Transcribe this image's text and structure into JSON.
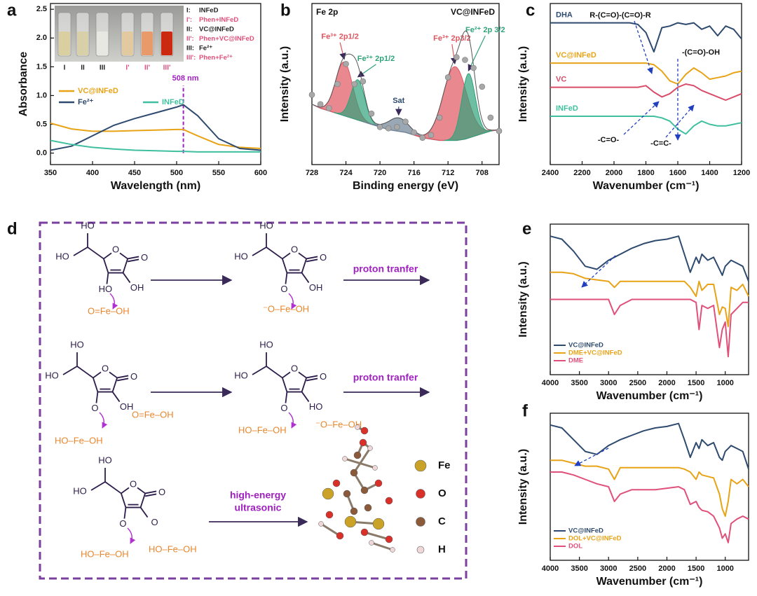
{
  "chart_data": [
    {
      "type": "line",
      "panel": "a",
      "xlabel": "Wavelength (nm)",
      "ylabel": "Absorbance",
      "x": [
        350,
        375,
        400,
        425,
        450,
        475,
        500,
        508,
        525,
        550,
        575,
        600
      ],
      "xlim": [
        350,
        600
      ],
      "xticks": [
        350,
        400,
        450,
        500,
        550,
        600
      ],
      "ylim": [
        -0.2,
        2.6
      ],
      "yticks": [
        {
          "value": 0,
          "label": "0.0"
        },
        0.5,
        {
          "value": 1,
          "label": "1.0"
        },
        1.5,
        {
          "value": 2,
          "label": "2.0"
        },
        2.5
      ],
      "legend": "middle left",
      "series": [
        {
          "name": "VC@INFeD",
          "color": "#e8a317",
          "values": [
            0.52,
            0.42,
            0.38,
            0.38,
            0.39,
            0.4,
            0.41,
            0.41,
            0.3,
            0.15,
            0.1,
            0.08
          ]
        },
        {
          "name": "Fe²⁺",
          "color": "#2e4a6e",
          "values": [
            0.05,
            0.12,
            0.3,
            0.48,
            0.6,
            0.7,
            0.8,
            0.84,
            0.65,
            0.25,
            0.08,
            0.05
          ]
        },
        {
          "name": "INFeD",
          "color": "#3fbf9f",
          "values": [
            0.22,
            0.15,
            0.1,
            0.07,
            0.05,
            0.04,
            0.03,
            0.03,
            0.02,
            0.02,
            0.02,
            0.02
          ]
        }
      ],
      "marker_line": {
        "x": 508,
        "label": "508 nm",
        "color": "#a020c0"
      },
      "inset": {
        "vials": [
          "I",
          "II",
          "III",
          "I'",
          "II'",
          "III'"
        ],
        "key": [
          {
            "id": "I:",
            "name": "INFeD",
            "color": "#222222"
          },
          {
            "id": "I':",
            "name": "Phen+INFeD",
            "color": "#e0507a"
          },
          {
            "id": "II:",
            "name": "VC@INFeD",
            "color": "#222222"
          },
          {
            "id": "II':",
            "name": "Phen+VC@INFeD",
            "color": "#e0507a"
          },
          {
            "id": "III:",
            "name": "Fe²⁺",
            "color": "#222222"
          },
          {
            "id": "III':",
            "name": "Phen+Fe²⁺",
            "color": "#e0507a"
          }
        ]
      }
    },
    {
      "type": "xps",
      "panel": "b",
      "xlabel": "Binding energy (eV)",
      "ylabel": "Intensity (a.u.)",
      "title": "Fe 2p",
      "subtitle": "VC@INFeD",
      "x": [
        728,
        727,
        726,
        725,
        724,
        723,
        722,
        721,
        720,
        719,
        718,
        717,
        716,
        715,
        714,
        713,
        712,
        711,
        710,
        709,
        708,
        707,
        706
      ],
      "xlim": [
        728,
        706
      ],
      "xticks": [
        728,
        724,
        720,
        716,
        712,
        708
      ],
      "ylim": [
        10,
        130
      ],
      "values": [
        62,
        55,
        52,
        70,
        85,
        70,
        72,
        48,
        38,
        37,
        38,
        42,
        34,
        30,
        32,
        45,
        75,
        90,
        88,
        82,
        68,
        45,
        35
      ],
      "point_color": "#a8a8a8",
      "background": [
        55,
        52,
        50,
        48,
        46,
        44,
        42,
        40,
        38,
        36,
        35,
        34,
        32,
        30,
        29,
        28,
        28,
        28,
        29,
        31,
        33,
        35,
        36
      ],
      "background_color": "#8fa3b8",
      "peaks": [
        {
          "label": "Fe³⁺ 2p1/2",
          "center": 724.2,
          "height": 40,
          "width": 1.0,
          "color": "#e0555f"
        },
        {
          "label": "Fe²⁺ 2p1/2",
          "center": 722.6,
          "height": 30,
          "width": 0.8,
          "color": "#2fa37a"
        },
        {
          "label": "Sat",
          "center": 717.8,
          "height": 10,
          "width": 1.2,
          "color": "#6f8296"
        },
        {
          "label": "Fe³⁺ 2p3/2",
          "center": 711.2,
          "height": 55,
          "width": 1.4,
          "color": "#e0555f"
        },
        {
          "label": "Fe²⁺ 2p 3/2",
          "center": 709.6,
          "height": 48,
          "width": 0.8,
          "color": "#2fa37a"
        }
      ]
    },
    {
      "type": "line",
      "panel": "c",
      "xlabel": "Wavenumber (cm⁻¹)",
      "ylabel": "Intensity (a.u.)",
      "x": [
        2400,
        2350,
        2300,
        2250,
        2200,
        2150,
        2100,
        2050,
        2000,
        1950,
        1900,
        1850,
        1800,
        1750,
        1700,
        1650,
        1600,
        1550,
        1500,
        1450,
        1400,
        1350,
        1300,
        1250,
        1200
      ],
      "xlim": [
        2400,
        1200
      ],
      "xticks": [
        2400,
        2200,
        2000,
        1800,
        1600,
        1400,
        1200
      ],
      "ylim": [
        0,
        100
      ],
      "series_labels": true,
      "series": [
        {
          "name": "DHA",
          "color": "#2e4a6e",
          "values": [
            88,
            88,
            88,
            88,
            88,
            88,
            88,
            88,
            88,
            88,
            88,
            87,
            82,
            70,
            85,
            86,
            88,
            87,
            88,
            84,
            86,
            80,
            86,
            84,
            78
          ]
        },
        {
          "name": "VC@INFeD",
          "color": "#e8a317",
          "values": [
            63,
            63,
            63,
            63,
            63,
            63,
            63,
            63,
            63,
            63,
            63,
            63,
            63,
            62,
            58,
            52,
            50,
            56,
            60,
            57,
            53,
            54,
            55,
            57,
            58
          ]
        },
        {
          "name": "VC",
          "color": "#d94c6a",
          "values": [
            48,
            48,
            48,
            48,
            48,
            48,
            48,
            48,
            48,
            48,
            48,
            48,
            49,
            45,
            42,
            44,
            48,
            50,
            49,
            46,
            44,
            42,
            40,
            42,
            44
          ]
        },
        {
          "name": "INFeD",
          "color": "#3fbf9f",
          "values": [
            30,
            30,
            30,
            30,
            30,
            30,
            30,
            30,
            30,
            30,
            30,
            30,
            30,
            30,
            29,
            27,
            22,
            19,
            24,
            27,
            25,
            24,
            24,
            25,
            26
          ]
        }
      ],
      "annotations": [
        "R-(C=O)-(C=O)-R",
        "-(C=O)-OH",
        "-C=O-",
        "-C=C-"
      ]
    },
    {
      "type": "line",
      "panel": "e",
      "xlabel": "Wavenumber (cm⁻¹)",
      "ylabel": "Intensity (a.u.)",
      "x": [
        4000,
        3800,
        3600,
        3400,
        3200,
        3000,
        2900,
        2800,
        2600,
        2400,
        2200,
        2000,
        1800,
        1700,
        1600,
        1500,
        1450,
        1400,
        1300,
        1200,
        1100,
        1050,
        1000,
        950,
        900,
        800,
        700,
        600
      ],
      "xlim": [
        4000,
        600
      ],
      "xticks": [
        4000,
        3500,
        3000,
        2500,
        2000,
        1500,
        1000
      ],
      "ylim": [
        0,
        100
      ],
      "legend": "lower left",
      "series": [
        {
          "name": "VC@INFeD",
          "color": "#2e4a6e",
          "values": [
            92,
            90,
            82,
            72,
            70,
            76,
            78,
            80,
            84,
            87,
            89,
            90,
            92,
            80,
            68,
            78,
            74,
            80,
            76,
            78,
            70,
            66,
            72,
            74,
            76,
            74,
            72,
            62
          ]
        },
        {
          "name": "DME+VC@INFeD",
          "color": "#e8a317",
          "values": [
            68,
            68,
            67,
            64,
            63,
            62,
            58,
            62,
            62,
            62,
            62,
            62,
            62,
            62,
            58,
            52,
            62,
            56,
            60,
            60,
            40,
            45,
            44,
            32,
            58,
            56,
            60,
            52
          ]
        },
        {
          "name": "DME",
          "color": "#e0507a",
          "values": [
            50,
            50,
            50,
            50,
            50,
            50,
            40,
            46,
            50,
            50,
            50,
            50,
            50,
            50,
            50,
            48,
            30,
            46,
            44,
            46,
            18,
            30,
            35,
            12,
            40,
            44,
            48,
            48
          ]
        }
      ]
    },
    {
      "type": "line",
      "panel": "f",
      "xlabel": "Wavenumber (cm⁻¹)",
      "ylabel": "Intensity (a.u.)",
      "x": [
        4000,
        3800,
        3600,
        3400,
        3200,
        3000,
        2900,
        2800,
        2600,
        2400,
        2200,
        2000,
        1800,
        1700,
        1600,
        1500,
        1450,
        1400,
        1300,
        1200,
        1100,
        1050,
        1000,
        950,
        900,
        800,
        700,
        600
      ],
      "xlim": [
        4000,
        600
      ],
      "xticks": [
        4000,
        3500,
        3000,
        2500,
        2000,
        1500,
        1000
      ],
      "ylim": [
        0,
        100
      ],
      "legend": "lower left",
      "series": [
        {
          "name": "VC@INFeD",
          "color": "#2e4a6e",
          "values": [
            92,
            90,
            82,
            74,
            72,
            78,
            80,
            82,
            85,
            88,
            90,
            91,
            93,
            82,
            70,
            80,
            76,
            82,
            78,
            80,
            70,
            68,
            74,
            76,
            78,
            76,
            74,
            62
          ]
        },
        {
          "name": "DOL+VC@INFeD",
          "color": "#e8a317",
          "values": [
            68,
            68,
            66,
            64,
            64,
            62,
            55,
            63,
            63,
            63,
            63,
            63,
            63,
            62,
            60,
            55,
            60,
            58,
            57,
            56,
            45,
            35,
            30,
            40,
            55,
            52,
            55,
            50
          ]
        },
        {
          "name": "DOL",
          "color": "#e0507a",
          "values": [
            60,
            60,
            58,
            55,
            52,
            50,
            40,
            45,
            48,
            48,
            48,
            49,
            50,
            48,
            38,
            40,
            36,
            34,
            33,
            30,
            22,
            15,
            18,
            12,
            25,
            28,
            30,
            28
          ]
        }
      ]
    }
  ],
  "scheme": {
    "panel": "d",
    "molecules": [
      {
        "atoms": [
          "HO",
          "HO",
          "O",
          "O",
          "OH",
          "HO"
        ],
        "iron": [
          "O=Fe–OH"
        ]
      },
      {
        "atoms": [
          "HO",
          "HO",
          "O",
          "O",
          "OH",
          "O"
        ],
        "iron": [
          "⁻O–Fe–OH"
        ]
      },
      {
        "atoms": [
          "HO",
          "HO",
          "O",
          "O",
          "OH",
          "O"
        ],
        "iron": [
          "HO–Fe–OH",
          "O=Fe–OH"
        ]
      },
      {
        "atoms": [
          "HO",
          "HO",
          "O",
          "O",
          "HO",
          "O"
        ],
        "iron": [
          "HO–Fe–OH",
          "⁻O–Fe–OH"
        ]
      },
      {
        "atoms": [
          "HO",
          "HO",
          "O",
          "O",
          "O",
          "O"
        ],
        "iron": [
          "HO–Fe–OH",
          "HO–Fe–OH"
        ]
      }
    ],
    "arrow_labels": [
      "proton tranfer",
      "proton tranfer"
    ],
    "ultrasonic": [
      "high-energy",
      "ultrasonic"
    ],
    "elements": [
      {
        "symbol": "Fe",
        "color": "#c9a227"
      },
      {
        "symbol": "O",
        "color": "#d9302a"
      },
      {
        "symbol": "C",
        "color": "#8a5a3a"
      },
      {
        "symbol": "H",
        "color": "#f0d8d8"
      }
    ]
  }
}
